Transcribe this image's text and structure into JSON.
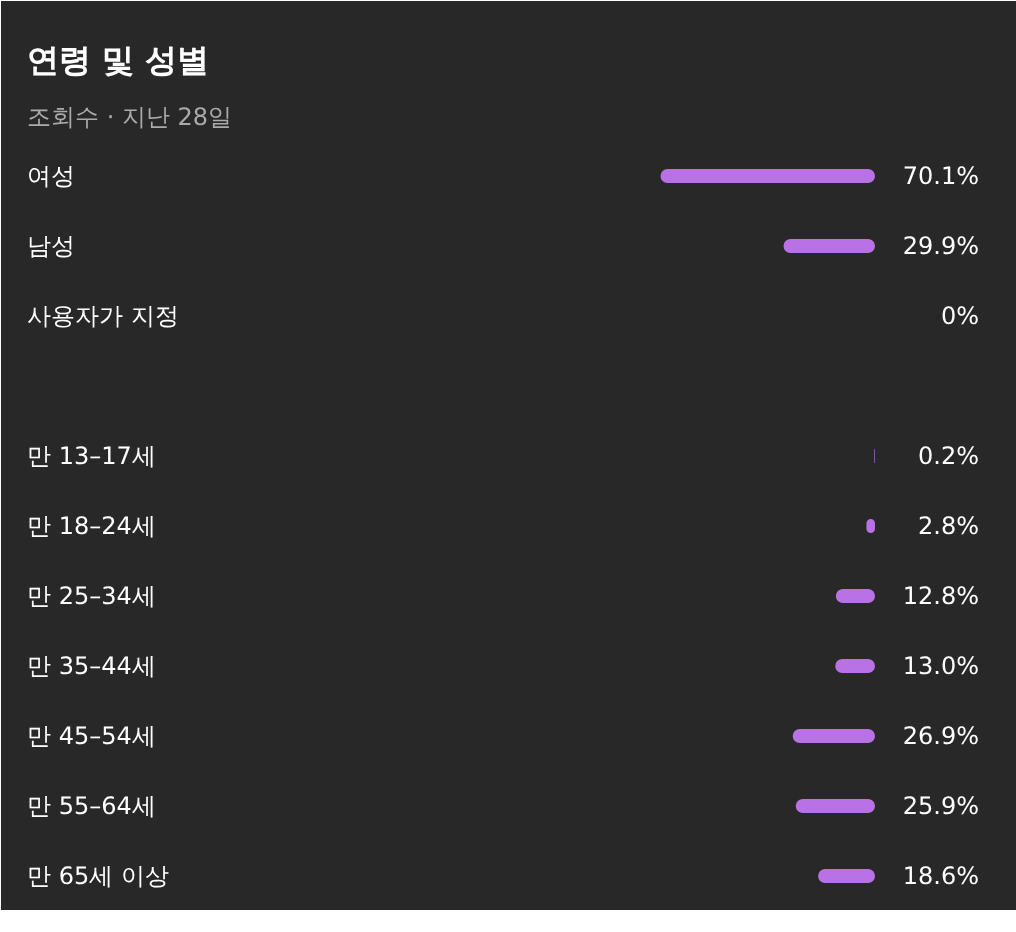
{
  "chart_data": {
    "type": "bar",
    "title": "연령 및 성별",
    "subtitle": "조회수 · 지난 28일",
    "orientation": "horizontal",
    "tick_labels": false,
    "color": "#b872e6",
    "categories": [
      "여성",
      "남성",
      "사용자가 지정",
      null,
      "만 13–17세",
      "만 18–24세",
      "만 25–34세",
      "만 35–44세",
      "만 45–54세",
      "만 55–64세",
      "만 65세 이상"
    ],
    "values": [
      70.1,
      29.9,
      0,
      null,
      0.2,
      2.8,
      12.8,
      13.0,
      26.9,
      25.9,
      18.6
    ],
    "value_labels": [
      "70.1%",
      "29.9%",
      "0%",
      null,
      "0.2%",
      "2.8%",
      "12.8%",
      "13.0%",
      "26.9%",
      "25.9%",
      "18.6%"
    ]
  }
}
